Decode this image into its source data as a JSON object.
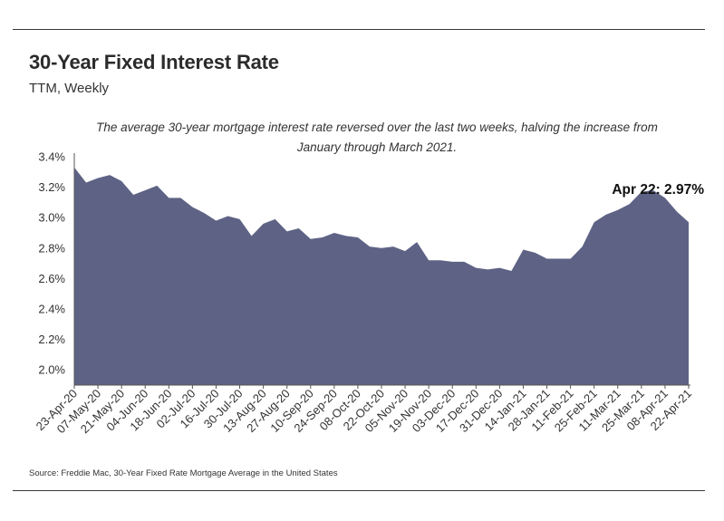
{
  "header": {
    "title": "30-Year Fixed Interest Rate",
    "subtitle": "TTM, Weekly"
  },
  "annotation": "The average 30-year mortgage interest rate reversed over the last two weeks, halving the increase from January through March 2021.",
  "source": "Source:  Freddie Mac, 30-Year Fixed Rate Mortgage Average in the United States",
  "colors": {
    "area": "#5e6385",
    "axis": "#555555",
    "rule": "#3a3a3a"
  },
  "chart_data": {
    "type": "area",
    "title": "30-Year Fixed Interest Rate",
    "subtitle": "TTM, Weekly",
    "ylim": [
      1.9,
      3.4
    ],
    "y_ticks": [
      2.0,
      2.2,
      2.4,
      2.6,
      2.8,
      3.0,
      3.2,
      3.4
    ],
    "y_tick_labels": [
      "2.0%",
      "2.2%",
      "2.4%",
      "2.6%",
      "2.8%",
      "3.0%",
      "3.2%",
      "3.4%"
    ],
    "x_tick_labels": [
      "23-Apr-20",
      "07-May-20",
      "21-May-20",
      "04-Jun-20",
      "18-Jun-20",
      "02-Jul-20",
      "16-Jul-20",
      "30-Jul-20",
      "13-Aug-20",
      "27-Aug-20",
      "10-Sep-20",
      "24-Sep-20",
      "08-Oct-20",
      "22-Oct-20",
      "05-Nov-20",
      "19-Nov-20",
      "03-Dec-20",
      "17-Dec-20",
      "31-Dec-20",
      "14-Jan-21",
      "28-Jan-21",
      "11-Feb-21",
      "25-Feb-21",
      "11-Mar-21",
      "25-Mar-21",
      "08-Apr-21",
      "22-Apr-21"
    ],
    "grid": false,
    "legend": "none",
    "series": [
      {
        "x": [
          "23-Apr-20",
          "30-Apr-20",
          "07-May-20",
          "14-May-20",
          "21-May-20",
          "28-May-20",
          "04-Jun-20",
          "11-Jun-20",
          "18-Jun-20",
          "25-Jun-20",
          "02-Jul-20",
          "09-Jul-20",
          "16-Jul-20",
          "23-Jul-20",
          "30-Jul-20",
          "06-Aug-20",
          "13-Aug-20",
          "20-Aug-20",
          "27-Aug-20",
          "03-Sep-20",
          "10-Sep-20",
          "17-Sep-20",
          "24-Sep-20",
          "01-Oct-20",
          "08-Oct-20",
          "15-Oct-20",
          "22-Oct-20",
          "29-Oct-20",
          "05-Nov-20",
          "12-Nov-20",
          "19-Nov-20",
          "26-Nov-20",
          "03-Dec-20",
          "10-Dec-20",
          "17-Dec-20",
          "24-Dec-20",
          "31-Dec-20",
          "07-Jan-21",
          "14-Jan-21",
          "21-Jan-21",
          "28-Jan-21",
          "04-Feb-21",
          "11-Feb-21",
          "18-Feb-21",
          "25-Feb-21",
          "04-Mar-21",
          "11-Mar-21",
          "18-Mar-21",
          "25-Mar-21",
          "01-Apr-21",
          "08-Apr-21",
          "15-Apr-21",
          "22-Apr-21"
        ],
        "values": [
          3.33,
          3.23,
          3.26,
          3.28,
          3.24,
          3.15,
          3.18,
          3.21,
          3.13,
          3.13,
          3.07,
          3.03,
          2.98,
          3.01,
          2.99,
          2.88,
          2.96,
          2.99,
          2.91,
          2.93,
          2.86,
          2.87,
          2.9,
          2.88,
          2.87,
          2.81,
          2.8,
          2.81,
          2.78,
          2.84,
          2.72,
          2.72,
          2.71,
          2.71,
          2.67,
          2.66,
          2.67,
          2.65,
          2.79,
          2.77,
          2.73,
          2.73,
          2.73,
          2.81,
          2.97,
          3.02,
          3.05,
          3.09,
          3.17,
          3.18,
          3.13,
          3.04,
          2.97
        ]
      }
    ],
    "annotations": [
      {
        "text": "Apr 22: 2.97%",
        "x": "22-Apr-21",
        "y": 2.97
      }
    ]
  }
}
